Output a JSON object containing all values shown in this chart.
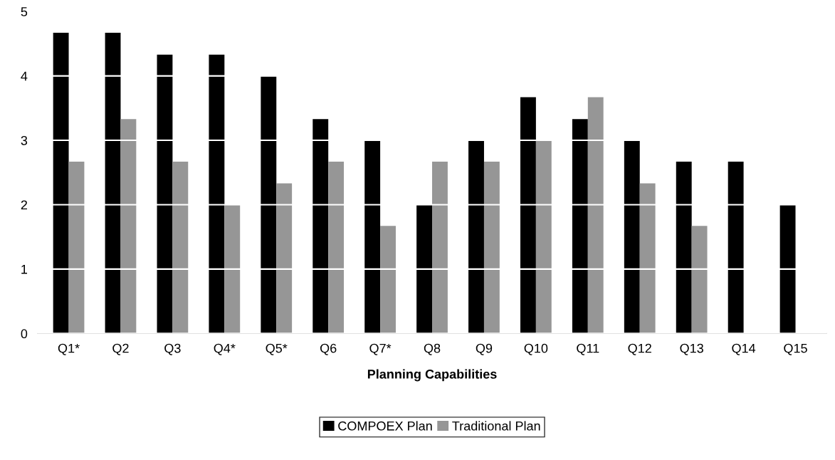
{
  "chart_data": {
    "type": "bar",
    "xlabel": "Planning Capabilities",
    "categories": [
      "Q1*",
      "Q2",
      "Q3",
      "Q4*",
      "Q5*",
      "Q6",
      "Q7*",
      "Q8",
      "Q9",
      "Q10",
      "Q11",
      "Q12",
      "Q13",
      "Q14",
      "Q15"
    ],
    "series": [
      {
        "name": "COMPOEX Plan",
        "color": "#000000",
        "values": [
          4.67,
          4.67,
          4.33,
          4.33,
          4.0,
          3.33,
          3.0,
          2.0,
          3.0,
          3.67,
          3.33,
          3.0,
          2.67,
          2.67,
          2.0
        ]
      },
      {
        "name": "Traditional Plan",
        "color": "#969696",
        "values": [
          2.67,
          3.33,
          2.67,
          2.0,
          2.33,
          2.67,
          1.67,
          2.67,
          2.67,
          3.0,
          3.67,
          2.33,
          1.67,
          null,
          null
        ]
      }
    ],
    "ylim": [
      0,
      5
    ],
    "yticks": [
      0,
      1,
      2,
      3,
      4,
      5
    ],
    "grid": "y",
    "legend": "bottom"
  }
}
